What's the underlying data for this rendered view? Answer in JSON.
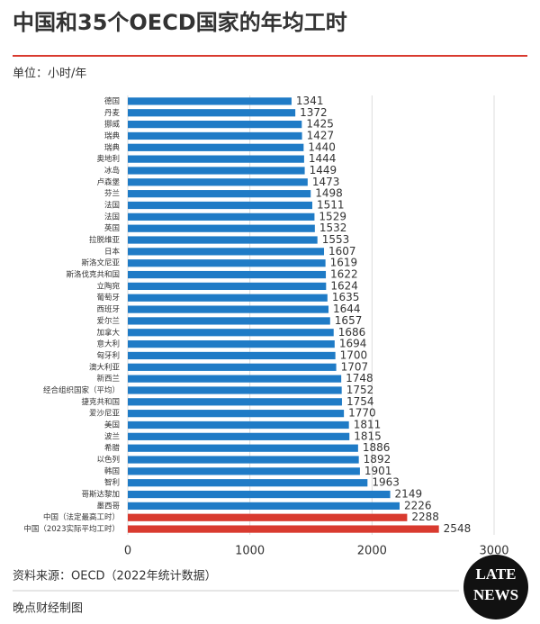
{
  "chart_data": {
    "type": "bar",
    "orientation": "horizontal",
    "title": "中国和35个OECD国家的年均工时",
    "subtitle": "单位：小时/年",
    "source": "资料来源：OECD（2022年统计数据）",
    "credit": "晚点财经制图",
    "logo": [
      "LATE",
      "NEWS"
    ],
    "categories": [
      "德国",
      "丹麦",
      "挪威",
      "瑞典",
      "瑞典",
      "奥地利",
      "冰岛",
      "卢森堡",
      "芬兰",
      "法国",
      "法国",
      "英国",
      "拉脱维亚",
      "日本",
      "斯洛文尼亚",
      "斯洛伐克共和国",
      "立陶宛",
      "葡萄牙",
      "西班牙",
      "爱尔兰",
      "加拿大",
      "意大利",
      "匈牙利",
      "澳大利亚",
      "新西兰",
      "经合组织国家（平均）",
      "捷克共和国",
      "爱沙尼亚",
      "美国",
      "波兰",
      "希腊",
      "以色列",
      "韩国",
      "智利",
      "哥斯达黎加",
      "墨西哥",
      "中国（法定最高工时）",
      "中国（2023实际平均工时）"
    ],
    "values": [
      1341,
      1372,
      1425,
      1427,
      1440,
      1444,
      1449,
      1473,
      1498,
      1511,
      1529,
      1532,
      1553,
      1607,
      1619,
      1622,
      1624,
      1635,
      1644,
      1657,
      1686,
      1694,
      1700,
      1707,
      1748,
      1752,
      1754,
      1770,
      1811,
      1815,
      1886,
      1892,
      1901,
      1963,
      2149,
      2226,
      2288,
      2548
    ],
    "colors": [
      "#1f7bc6",
      "#1f7bc6",
      "#1f7bc6",
      "#1f7bc6",
      "#1f7bc6",
      "#1f7bc6",
      "#1f7bc6",
      "#1f7bc6",
      "#1f7bc6",
      "#1f7bc6",
      "#1f7bc6",
      "#1f7bc6",
      "#1f7bc6",
      "#1f7bc6",
      "#1f7bc6",
      "#1f7bc6",
      "#1f7bc6",
      "#1f7bc6",
      "#1f7bc6",
      "#1f7bc6",
      "#1f7bc6",
      "#1f7bc6",
      "#1f7bc6",
      "#1f7bc6",
      "#1f7bc6",
      "#1f7bc6",
      "#1f7bc6",
      "#1f7bc6",
      "#1f7bc6",
      "#1f7bc6",
      "#1f7bc6",
      "#1f7bc6",
      "#1f7bc6",
      "#1f7bc6",
      "#1f7bc6",
      "#1f7bc6",
      "#d93a2f",
      "#d93a2f"
    ],
    "xlim": [
      0,
      3000
    ],
    "xticks": [
      0,
      1000,
      2000,
      3000
    ],
    "grid": true
  }
}
